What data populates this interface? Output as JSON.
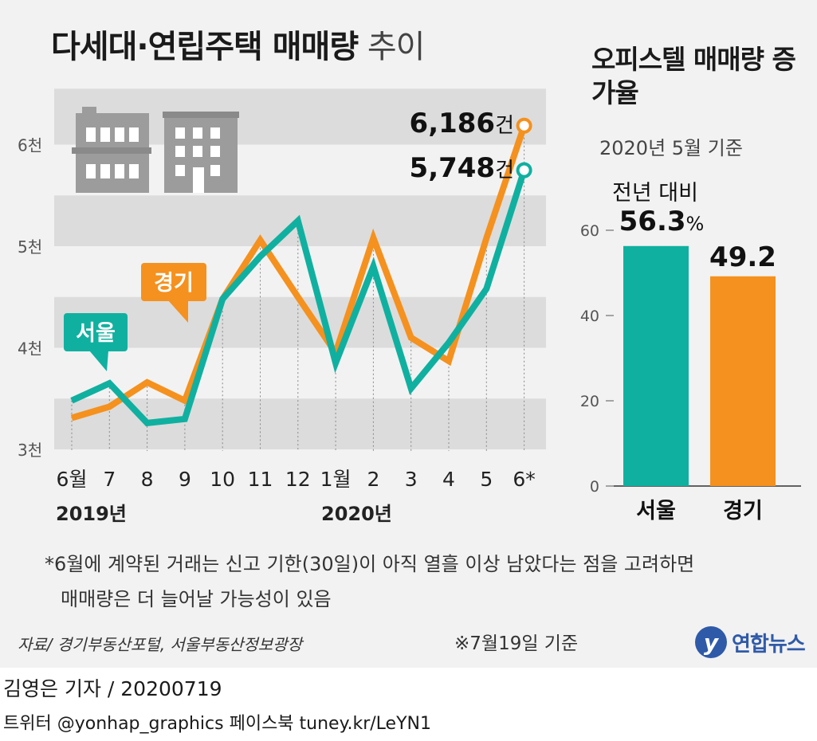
{
  "title": {
    "bold": "다세대·연립주택 매매량",
    "light": " 추이"
  },
  "chart_data": [
    {
      "type": "line",
      "x": [
        "6월",
        "7",
        "8",
        "9",
        "10",
        "11",
        "12",
        "1월",
        "2",
        "3",
        "4",
        "5",
        "6*"
      ],
      "year_labels": [
        "2019년",
        "2020년"
      ],
      "yticks": [
        "3천",
        "4천",
        "5천",
        "6천"
      ],
      "ylim": [
        2900,
        6550
      ],
      "series": [
        {
          "name": "서울",
          "color": "#10b0a0",
          "values": [
            3480,
            3650,
            3260,
            3300,
            4480,
            4900,
            5250,
            3850,
            4800,
            3600,
            4050,
            4580,
            5748
          ]
        },
        {
          "name": "경기",
          "color": "#f5911e",
          "values": [
            3310,
            3420,
            3660,
            3480,
            4480,
            5060,
            4500,
            3950,
            5080,
            4100,
            3870,
            5080,
            6186
          ]
        }
      ],
      "end_labels": [
        {
          "series": "경기",
          "number": "6,186",
          "unit": "건"
        },
        {
          "series": "서울",
          "number": "5,748",
          "unit": "건"
        }
      ],
      "grid": "alternating bands"
    },
    {
      "type": "bar",
      "title": "오피스텔 매매량 증가율",
      "subtitle": "2020년 5월 기준",
      "annotation": "전년 대비",
      "categories": [
        "서울",
        "경기"
      ],
      "values": [
        56.3,
        49.2
      ],
      "value_labels": [
        "56.3",
        "49.2"
      ],
      "value_unit": "%",
      "colors": [
        "#10b0a0",
        "#f5911e"
      ],
      "yticks": [
        "0",
        "20",
        "40",
        "60"
      ],
      "ylim": [
        0,
        68
      ]
    }
  ],
  "footnote": {
    "line1": "*6월에 계약된 거래는 신고 기한(30일)이 아직 열흘 이상 남았다는 점을 고려하면",
    "line2": "매매량은 더 늘어날 가능성이 있음"
  },
  "source": "자료/ 경기부동산포털, 서울부동산정보광장",
  "basis_date": "※7월19일 기준",
  "logo": {
    "mark": "y",
    "text": "연합뉴스",
    "icon": "yonhap-logo-icon"
  },
  "credit": "김영은 기자 / 20200719",
  "contact": "트위터 @yonhap_graphics  페이스북 tuney.kr/LeYN1",
  "illustration": "apartment-buildings-icon"
}
